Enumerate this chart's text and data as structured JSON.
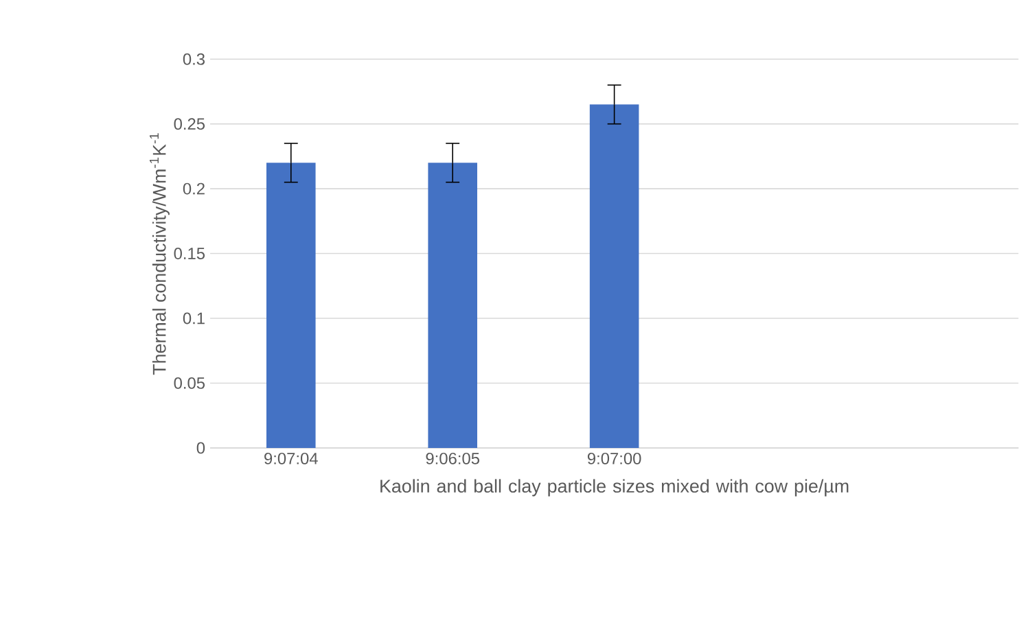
{
  "chart_data": {
    "type": "bar",
    "xlabel": "Kaolin and ball clay particle sizes mixed with cow pie/µm",
    "ylabel": "Thermal conductivity/Wm$^{-1}$K$^{-1}$",
    "categories": [
      "9:07:04",
      "9:06:05",
      "9:07:00",
      null,
      null
    ],
    "values": [
      0.22,
      0.22,
      0.265,
      null,
      null
    ],
    "errors": [
      0.015,
      0.015,
      0.015,
      null,
      null
    ],
    "color": "#4472c4",
    "ylim": [
      0,
      0.3
    ],
    "yticks": [
      0,
      0.05,
      0.1,
      0.15,
      0.2,
      0.25,
      0.3
    ],
    "grid": "y"
  }
}
